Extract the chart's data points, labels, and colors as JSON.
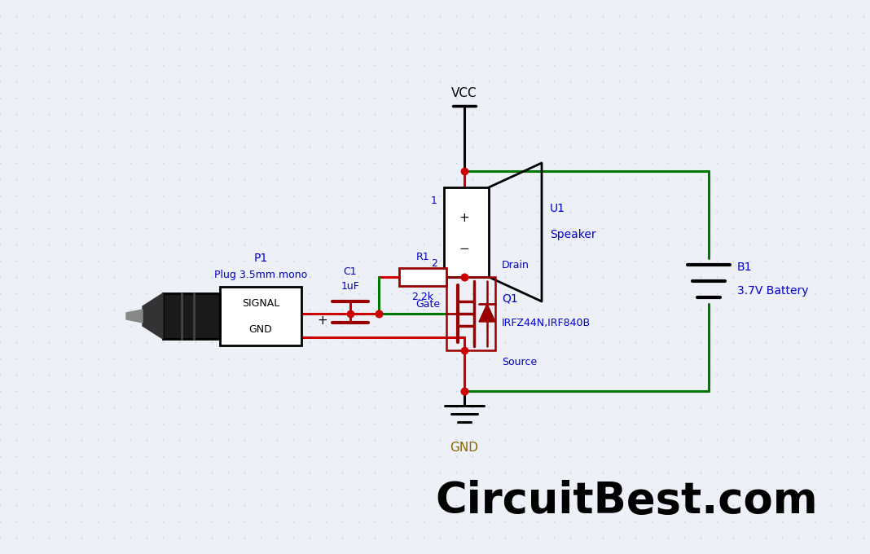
{
  "bg_color": "#edf0f7",
  "grid_color": "#c5cfe0",
  "wire_red": "#cc0000",
  "wire_green": "#007700",
  "dark_red": "#990000",
  "label_color": "#0000cc",
  "black": "#000000",
  "gnd_color": "#886600",
  "title": "CircuitBest.com",
  "title_color": "#000000",
  "title_fontsize": 38,
  "vcc_label": "VCC",
  "gnd_label": "GND",
  "r1_label1": "R1",
  "r1_label2": "2.2k",
  "c1_label1": "C1",
  "c1_label2": "1uF",
  "p1_label1": "P1",
  "p1_label2": "Plug 3.5mm mono",
  "u1_label1": "U1",
  "u1_label2": "Speaker",
  "q1_label1": "Q1",
  "q1_label2": "IRFZ44N,IRF840B",
  "b1_label1": "B1",
  "b1_label2": "3.7V Battery",
  "drain_label": "Drain",
  "gate_label": "Gate",
  "source_label": "Source",
  "signal_label": "SIGNAL",
  "gnd_plug_label": "GND",
  "pin1_label": "1",
  "pin2_label": "2",
  "dot_size": 7,
  "wire_lw": 2.2
}
